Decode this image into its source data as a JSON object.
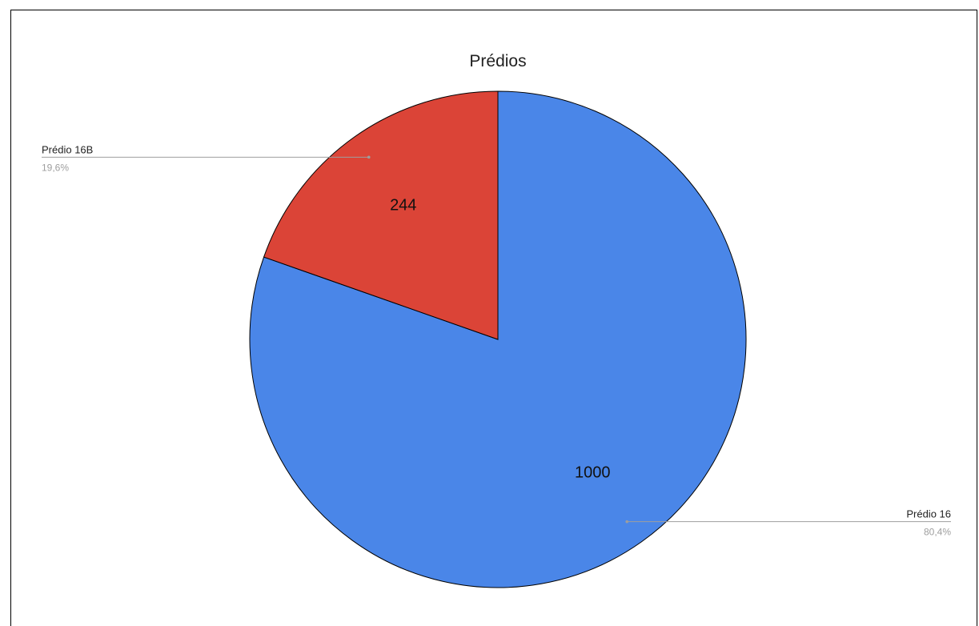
{
  "chart_data": {
    "type": "pie",
    "title": "Prédios",
    "slices": [
      {
        "label": "Prédio 16",
        "value": 1000,
        "percent_label": "80,4%",
        "color": "#4a86e8"
      },
      {
        "label": "Prédio 16B",
        "value": 244,
        "percent_label": "19,6%",
        "color": "#db4437"
      }
    ],
    "legend": "callouts",
    "stroke_color": "#000000",
    "leader_color": "#9e9e9e"
  }
}
